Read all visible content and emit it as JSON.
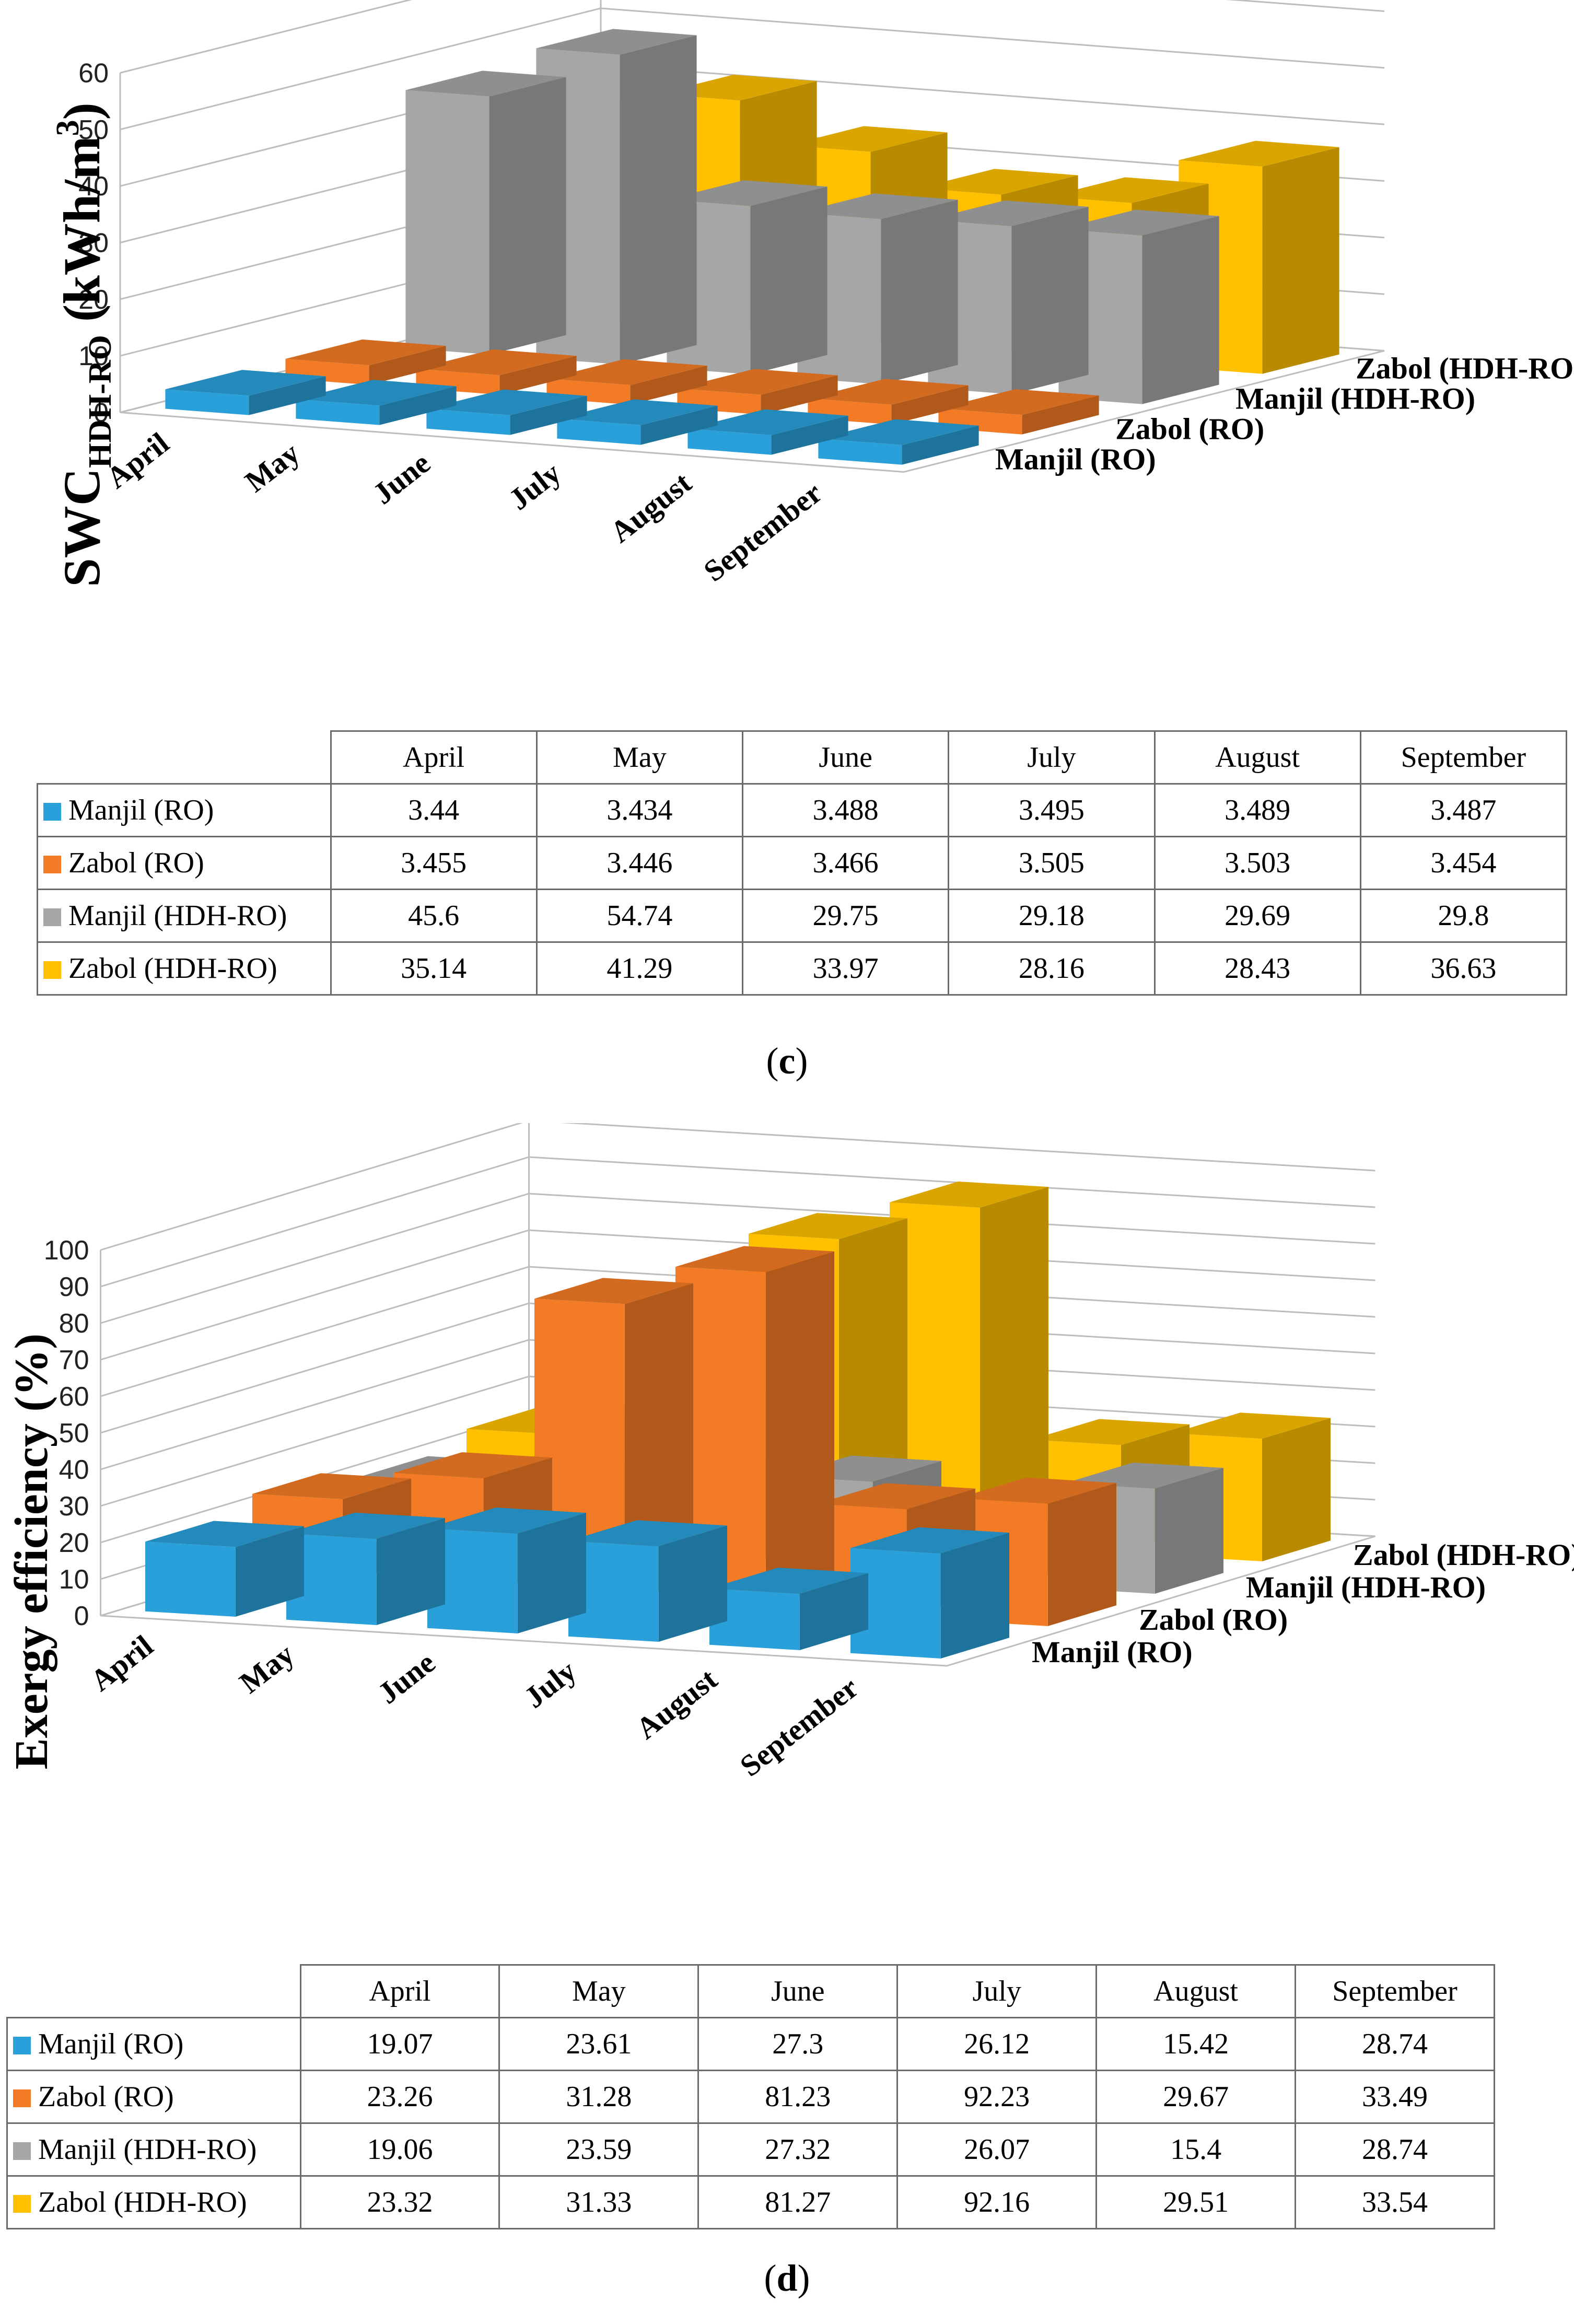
{
  "chart_data": [
    {
      "type": "bar",
      "id": "c",
      "caption": "c",
      "ylabel_main": "SWC",
      "ylabel_sub": "HDH-RO",
      "ylabel_unit": " (kWh/m",
      "ylabel_sup": "3",
      "ylabel_close": ")",
      "ylim": [
        0,
        60
      ],
      "ticks": [
        "0",
        "10",
        "20",
        "30",
        "40",
        "50",
        "60"
      ],
      "categories": [
        "April",
        "May",
        "June",
        "July",
        "August",
        "September"
      ],
      "series": [
        {
          "name": "Manjil (RO)",
          "color": "#2aa0da",
          "values": [
            3.44,
            3.434,
            3.488,
            3.495,
            3.489,
            3.487
          ],
          "labels": [
            "3.44",
            "3.434",
            "3.488",
            "3.495",
            "3.489",
            "3.487"
          ]
        },
        {
          "name": "Zabol (RO)",
          "color": "#f47b25",
          "values": [
            3.455,
            3.446,
            3.466,
            3.505,
            3.503,
            3.454
          ],
          "labels": [
            "3.455",
            "3.446",
            "3.466",
            "3.505",
            "3.503",
            "3.454"
          ]
        },
        {
          "name": "Manjil (HDH-RO)",
          "color": "#a6a6a6",
          "values": [
            45.6,
            54.74,
            29.75,
            29.18,
            29.69,
            29.8
          ],
          "labels": [
            "45.6",
            "54.74",
            "29.75",
            "29.18",
            "29.69",
            "29.8"
          ]
        },
        {
          "name": "Zabol (HDH-RO)",
          "color": "#ffc000",
          "values": [
            35.14,
            41.29,
            33.97,
            28.16,
            28.43,
            36.63
          ],
          "labels": [
            "35.14",
            "41.29",
            "33.97",
            "28.16",
            "28.43",
            "36.63"
          ]
        }
      ]
    },
    {
      "type": "bar",
      "id": "d",
      "caption": "d",
      "ylabel_main": "Exergy efficiency (%)",
      "ylim": [
        0,
        100
      ],
      "ticks": [
        "0",
        "10",
        "20",
        "30",
        "40",
        "50",
        "60",
        "70",
        "80",
        "90",
        "100"
      ],
      "categories": [
        "April",
        "May",
        "June",
        "July",
        "August",
        "September"
      ],
      "series": [
        {
          "name": "Manjil (RO)",
          "color": "#2aa0da",
          "values": [
            19.07,
            23.61,
            27.3,
            26.12,
            15.42,
            28.74
          ],
          "labels": [
            "19.07",
            "23.61",
            "27.3",
            "26.12",
            "15.42",
            "28.74"
          ]
        },
        {
          "name": "Zabol (RO)",
          "color": "#f47b25",
          "values": [
            23.26,
            31.28,
            81.23,
            92.23,
            29.67,
            33.49
          ],
          "labels": [
            "23.26",
            "31.28",
            "81.23",
            "92.23",
            "29.67",
            "33.49"
          ]
        },
        {
          "name": "Manjil (HDH-RO)",
          "color": "#a6a6a6",
          "values": [
            19.06,
            23.59,
            27.32,
            26.07,
            15.4,
            28.74
          ],
          "labels": [
            "19.06",
            "23.59",
            "27.32",
            "26.07",
            "15.4",
            "28.74"
          ]
        },
        {
          "name": "Zabol (HDH-RO)",
          "color": "#ffc000",
          "values": [
            23.32,
            31.33,
            81.27,
            92.16,
            29.51,
            33.54
          ],
          "labels": [
            "23.32",
            "31.33",
            "81.27",
            "92.16",
            "29.51",
            "33.54"
          ]
        }
      ]
    }
  ]
}
